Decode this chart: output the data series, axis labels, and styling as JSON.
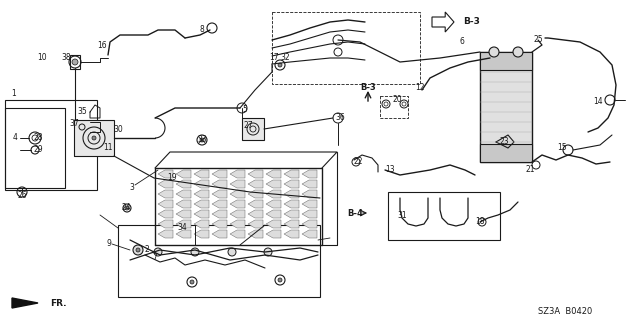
{
  "bg_color": "#ffffff",
  "line_color": "#1a1a1a",
  "footer_code": "SZ3A  B0420",
  "label_fs": 5.5,
  "part_labels": [
    [
      "1",
      14,
      93
    ],
    [
      "2",
      147,
      249
    ],
    [
      "3",
      132,
      187
    ],
    [
      "4",
      15,
      138
    ],
    [
      "5",
      245,
      110
    ],
    [
      "6",
      462,
      42
    ],
    [
      "7",
      155,
      258
    ],
    [
      "8",
      202,
      30
    ],
    [
      "9",
      109,
      244
    ],
    [
      "10",
      42,
      57
    ],
    [
      "11",
      108,
      148
    ],
    [
      "12",
      420,
      88
    ],
    [
      "13",
      390,
      170
    ],
    [
      "14",
      598,
      102
    ],
    [
      "15",
      562,
      148
    ],
    [
      "16",
      102,
      45
    ],
    [
      "17",
      274,
      58
    ],
    [
      "18",
      480,
      222
    ],
    [
      "19",
      172,
      178
    ],
    [
      "20",
      397,
      100
    ],
    [
      "21",
      530,
      170
    ],
    [
      "22",
      358,
      162
    ],
    [
      "23",
      504,
      142
    ],
    [
      "24",
      126,
      208
    ],
    [
      "25",
      538,
      40
    ],
    [
      "26",
      22,
      196
    ],
    [
      "27",
      248,
      125
    ],
    [
      "28",
      38,
      138
    ],
    [
      "29",
      38,
      149
    ],
    [
      "30",
      118,
      130
    ],
    [
      "31",
      402,
      215
    ],
    [
      "32",
      285,
      58
    ],
    [
      "33",
      202,
      140
    ],
    [
      "34",
      182,
      228
    ],
    [
      "35",
      82,
      112
    ],
    [
      "36",
      340,
      118
    ],
    [
      "37",
      74,
      124
    ],
    [
      "38",
      66,
      57
    ]
  ]
}
